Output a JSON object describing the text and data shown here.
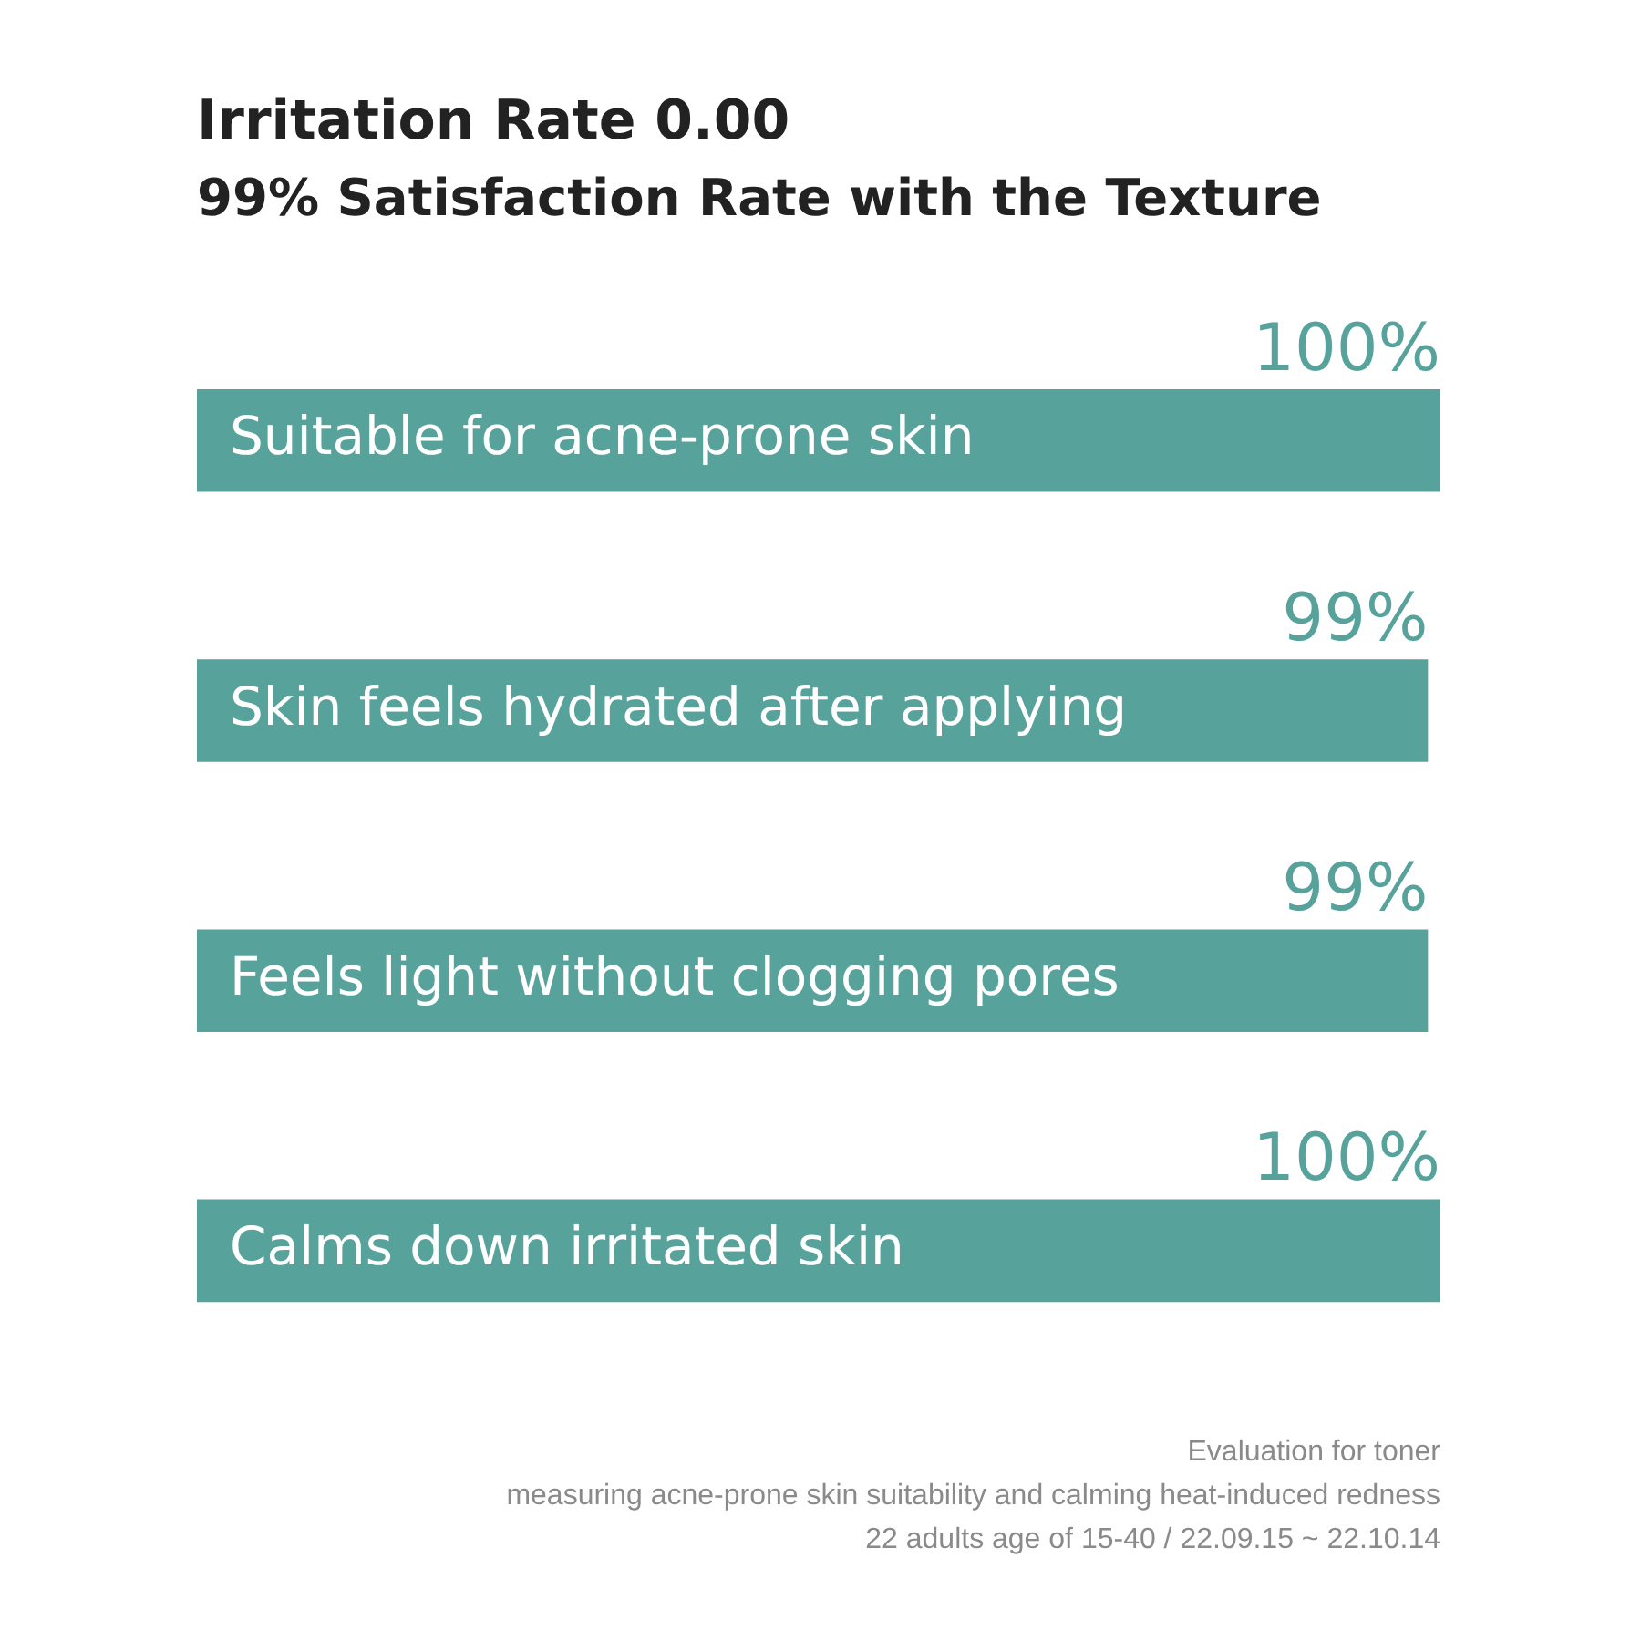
{
  "chart_data": {
    "type": "bar",
    "orientation": "horizontal",
    "title": "Irritation Rate 0.00",
    "subtitle": "99% Satisfaction Rate with the Texture",
    "categories": [
      "Suitable for acne-prone skin",
      "Skin feels hydrated after applying",
      "Feels light without clogging pores",
      "Calms down irritated skin"
    ],
    "values": [
      100,
      99,
      99,
      100
    ],
    "value_labels": [
      "100%",
      "99%",
      "99%",
      "100%"
    ],
    "color": "#58a29c",
    "tick_labels": "y",
    "legend": false,
    "annotations": [
      "Evaluation for toner",
      "measuring acne-prone skin suitability and calming heat-induced redness",
      "22 adults age of 15-40 / 22.09.15 ~ 22.10.14"
    ]
  }
}
